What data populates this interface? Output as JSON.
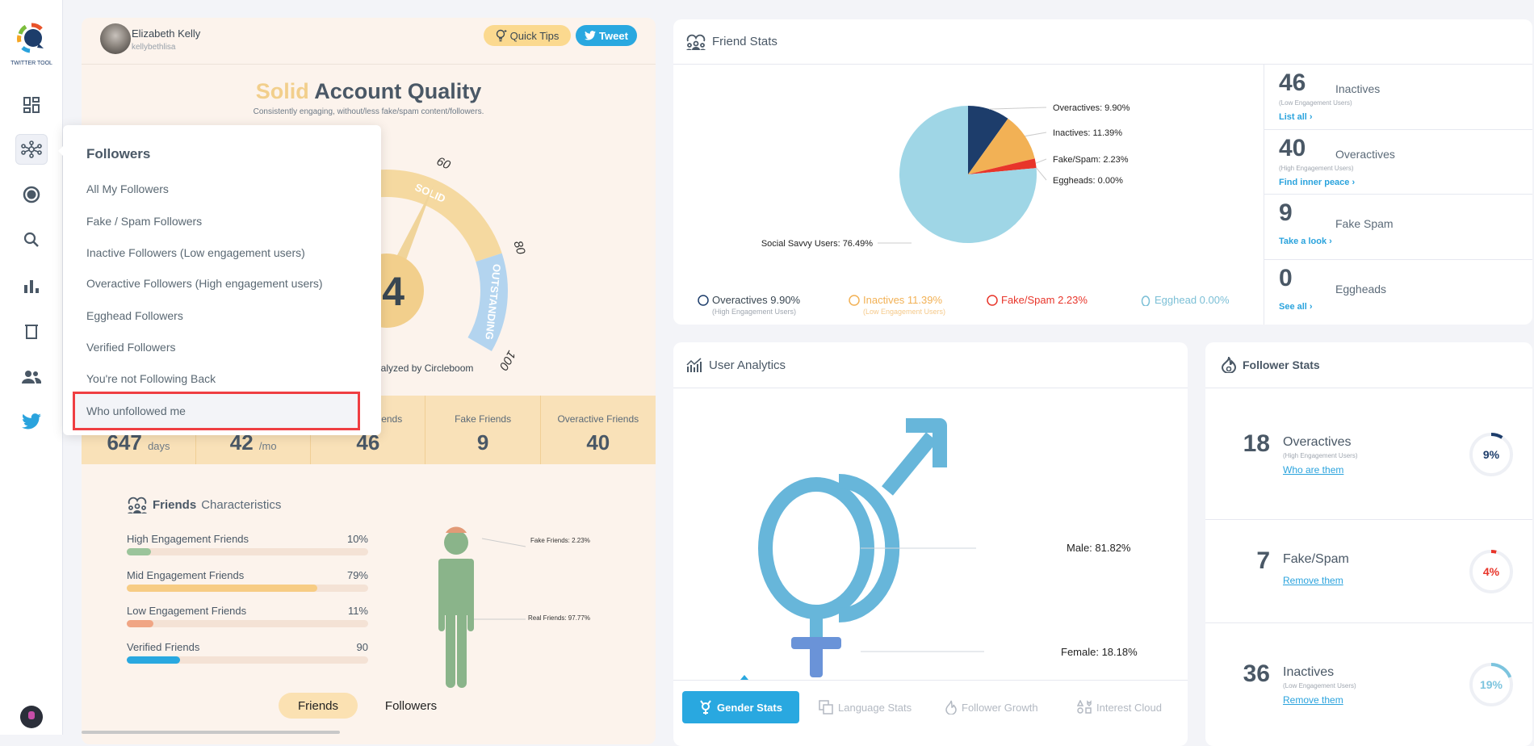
{
  "sidebar": {
    "logo_text": "TWITTER TOOL",
    "icons": [
      "dashboard-icon",
      "network-icon",
      "record-icon",
      "search-icon",
      "bar-chart-icon",
      "trash-icon",
      "users-icon",
      "twitter-icon"
    ],
    "active_index": 1
  },
  "profile": {
    "name": "Elizabeth Kelly",
    "handle": "kellybethlisa"
  },
  "header_buttons": {
    "quick_tips": "Quick Tips",
    "tweet": "Tweet"
  },
  "quality": {
    "title_accent": "Solid",
    "title_rest": "Account Quality",
    "subtitle": "Consistently engaging, without/less fake/spam content/followers.",
    "score_visible": "4",
    "gauge_ticks": [
      "60",
      "80",
      "100"
    ],
    "band_labels": [
      "SOLID",
      "OUTSTANDING"
    ],
    "analyzed_by": "Analyzed by Circleboom"
  },
  "stats_band": [
    {
      "label": "",
      "value": "647",
      "unit": "days"
    },
    {
      "label": "",
      "value": "42",
      "unit": "/mo"
    },
    {
      "label": "Inactive Friends",
      "value": "46",
      "unit": ""
    },
    {
      "label": "Fake Friends",
      "value": "9",
      "unit": ""
    },
    {
      "label": "Overactive Friends",
      "value": "40",
      "unit": ""
    }
  ],
  "friends_characteristics": {
    "title_bold": "Friends",
    "title_rest": "Characteristics",
    "bars": [
      {
        "label": "High Engagement Friends",
        "value": "10%",
        "fill": 10,
        "color": "#9bc49b"
      },
      {
        "label": "Mid Engagement Friends",
        "value": "79%",
        "fill": 79,
        "color": "#f7cc84"
      },
      {
        "label": "Low Engagement Friends",
        "value": "11%",
        "fill": 11,
        "color": "#f0a584"
      },
      {
        "label": "Verified Friends",
        "value": "90",
        "fill": 22,
        "color": "#29a8e0"
      }
    ],
    "figure_labels": {
      "fake": "Fake Friends: 2.23%",
      "real": "Real Friends: 97.77%"
    },
    "tabs": [
      "Friends",
      "Followers"
    ],
    "active_tab": 0
  },
  "dropdown": {
    "title": "Followers",
    "items": [
      "All My Followers",
      "Fake / Spam Followers",
      "Inactive Followers (Low engagement users)",
      "Overactive Followers (High engagement users)",
      "Egghead Followers",
      "Verified Followers",
      "You're not Following Back",
      "Who unfollowed me"
    ],
    "highlighted_index": 7
  },
  "friend_stats": {
    "title": "Friend Stats",
    "chart_data": {
      "type": "pie",
      "slices": [
        {
          "name": "Overactives",
          "value": 9.9,
          "label": "Overactives: 9.90%",
          "color": "#1d3d6b"
        },
        {
          "name": "Inactives",
          "value": 11.39,
          "label": "Inactives: 11.39%",
          "color": "#f2b155"
        },
        {
          "name": "Fake/Spam",
          "value": 2.23,
          "label": "Fake/Spam: 2.23%",
          "color": "#e8352a"
        },
        {
          "name": "Eggheads",
          "value": 0.0,
          "label": "Eggheads: 0.00%",
          "color": "#7bbfd6"
        },
        {
          "name": "Social Savvy Users",
          "value": 76.49,
          "label": "Social Savvy Users: 76.49%",
          "color": "#9fd6e6"
        }
      ]
    },
    "legend": [
      {
        "label": "Overactives 9.90%",
        "sub": "(High Engagement Users)",
        "color": "#1d3d6b"
      },
      {
        "label": "Inactives 11.39%",
        "sub": "(Low Engagement Users)",
        "color": "#f2b155"
      },
      {
        "label": "Fake/Spam 2.23%",
        "sub": "",
        "color": "#e8352a"
      },
      {
        "label": "Egghead 0.00%",
        "sub": "",
        "color": "#7bbfd6"
      }
    ],
    "side": [
      {
        "num": "46",
        "name": "Inactives",
        "sub": "(Low Engagement Users)",
        "link": "List all ›"
      },
      {
        "num": "40",
        "name": "Overactives",
        "sub": "(High Engagement Users)",
        "link": "Find inner peace ›"
      },
      {
        "num": "9",
        "name": "Fake Spam",
        "sub": "",
        "link": "Take a look ›"
      },
      {
        "num": "0",
        "name": "Eggheads",
        "sub": "",
        "link": "See all ›"
      }
    ]
  },
  "user_analytics": {
    "title": "User Analytics",
    "male_label": "Male: 81.82%",
    "female_label": "Female: 18.18%",
    "tabs": [
      "Gender Stats",
      "Language Stats",
      "Follower Growth",
      "Interest Cloud"
    ],
    "active_tab": 0
  },
  "follower_stats": {
    "title": "Follower Stats",
    "rows": [
      {
        "num": "18",
        "name": "Overactives",
        "sub": "(High Engagement Users)",
        "link": "Who are them",
        "percent": 9,
        "percent_label": "9%",
        "color": "#1d3d6b"
      },
      {
        "num": "7",
        "name": "Fake/Spam",
        "sub": "",
        "link": "Remove them",
        "percent": 4,
        "percent_label": "4%",
        "color": "#e8352a"
      },
      {
        "num": "36",
        "name": "Inactives",
        "sub": "(Low Engagement Users)",
        "link": "Remove them",
        "percent": 19,
        "percent_label": "19%",
        "color": "#7cc4de"
      }
    ]
  }
}
